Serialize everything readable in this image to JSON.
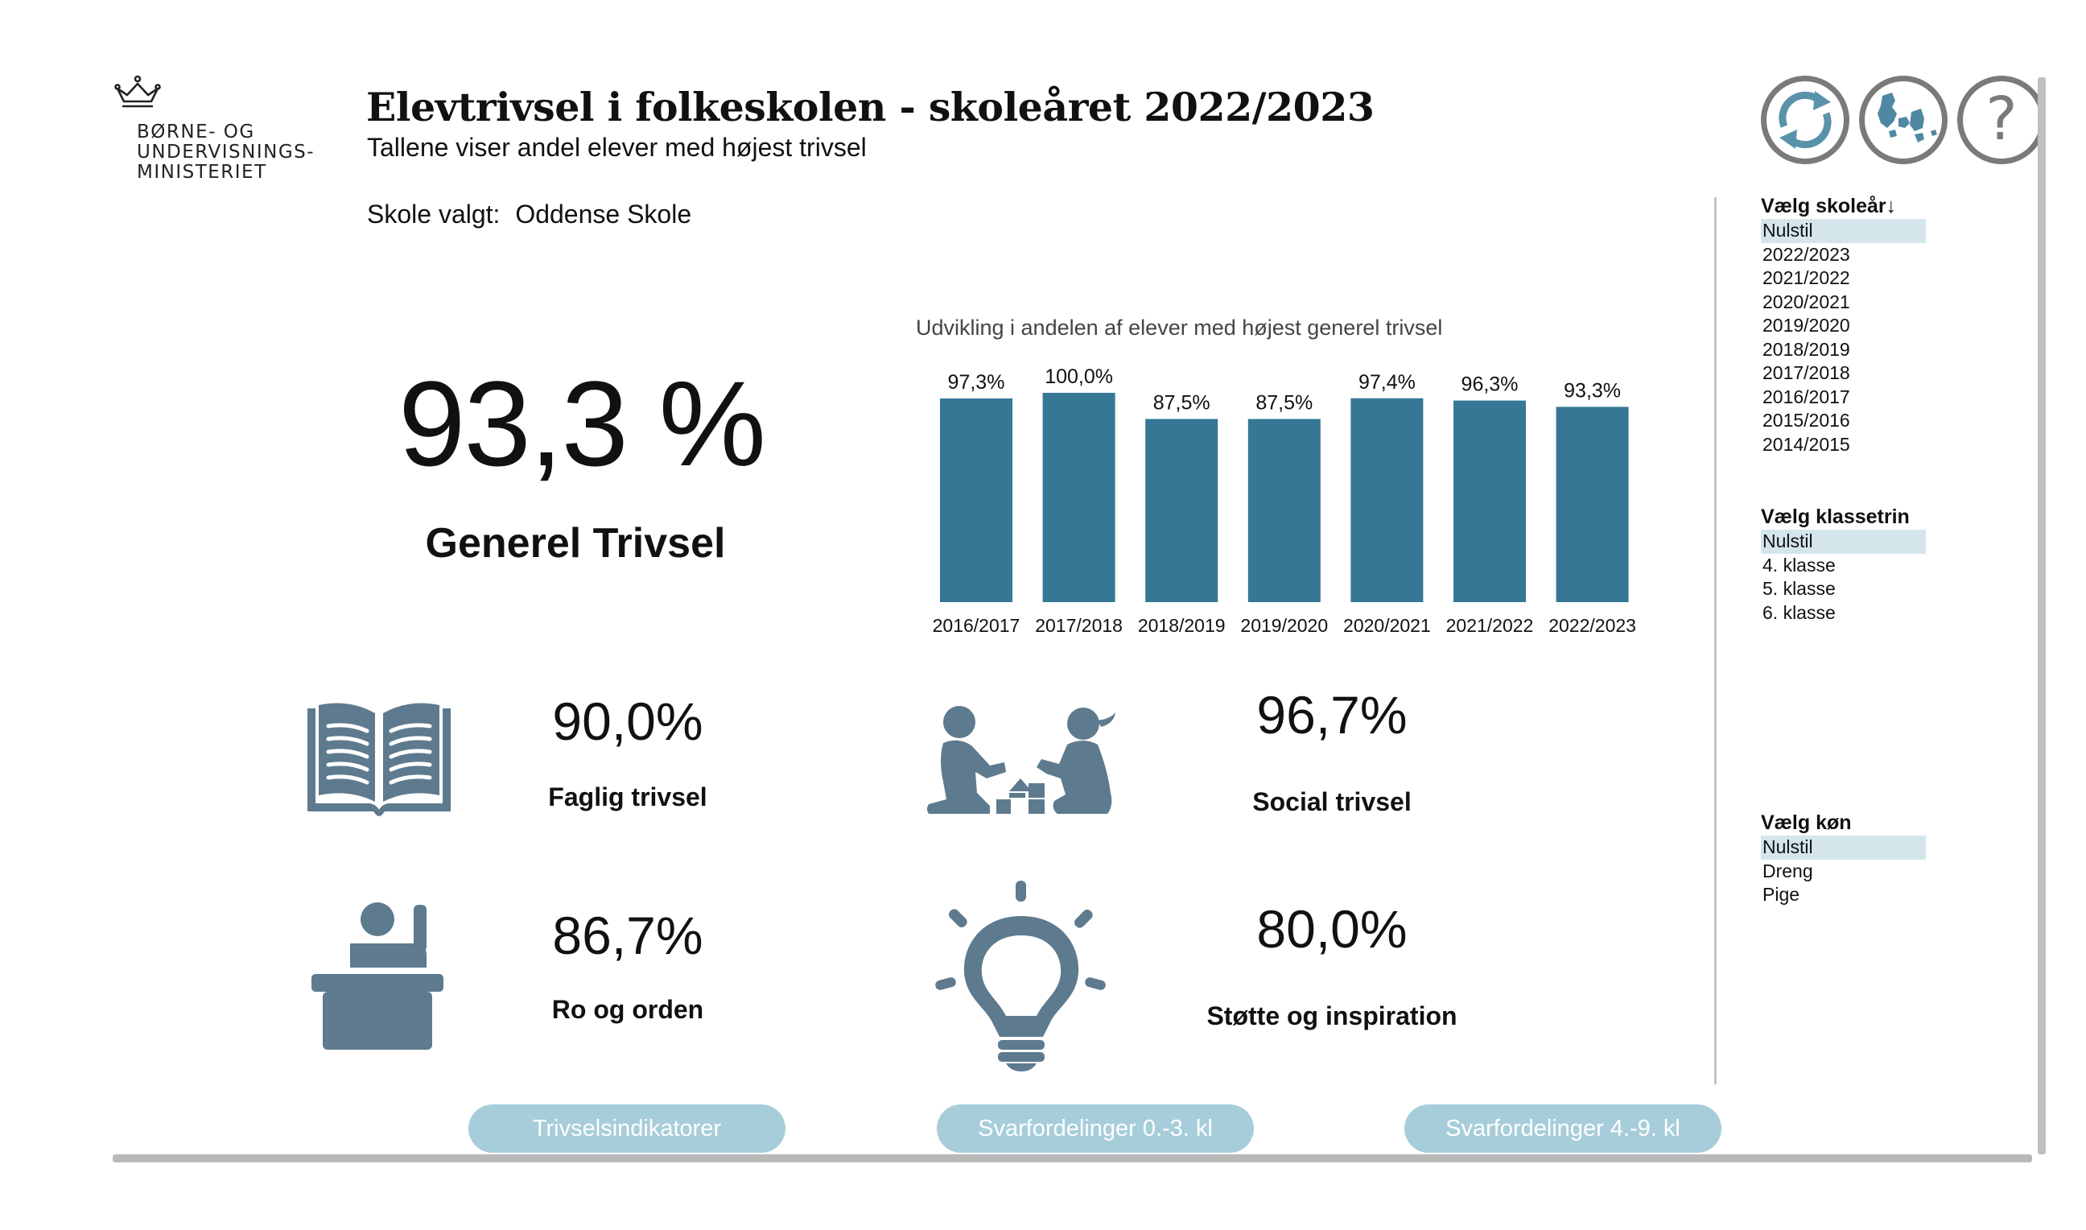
{
  "logo": {
    "lines": [
      "BØRNE- OG",
      "UNDERVISNINGS-",
      "MINISTERIET"
    ]
  },
  "header": {
    "title": "Elevtrivsel i folkeskolen - skoleåret 2022/2023",
    "subtitle": "Tallene viser andel elever med højest trivsel",
    "school_label": "Skole valgt:",
    "school_value": "Oddense Skole"
  },
  "kpi": {
    "value": "93,3 %",
    "label": "Generel Trivsel"
  },
  "chart_data": {
    "type": "bar",
    "title": "Udvikling i andelen af elever med højest generel trivsel",
    "categories": [
      "2016/2017",
      "2017/2018",
      "2018/2019",
      "2019/2020",
      "2020/2021",
      "2021/2022",
      "2022/2023"
    ],
    "values": [
      97.3,
      100.0,
      87.5,
      87.5,
      97.4,
      96.3,
      93.3
    ],
    "data_labels": [
      "97,3%",
      "100,0%",
      "87,5%",
      "87,5%",
      "97,4%",
      "96,3%",
      "93,3%"
    ],
    "ylim": [
      0,
      100
    ],
    "color": "#367795",
    "grid": false
  },
  "indicators": [
    {
      "value": "90,0%",
      "label": "Faglig trivsel",
      "icon": "open-book-icon"
    },
    {
      "value": "96,7%",
      "label": "Social trivsel",
      "icon": "children-playing-icon"
    },
    {
      "value": "86,7%",
      "label": "Ro og orden",
      "icon": "student-raising-hand-icon"
    },
    {
      "value": "80,0%",
      "label": "Støtte og inspiration",
      "icon": "lightbulb-icon"
    }
  ],
  "icon_color": "#5e7a8e",
  "buttons": [
    "Trivselsindikatorer",
    "Svarfordelinger 0.-3. kl",
    "Svarfordelinger 4.-9. kl"
  ],
  "button_color": "#a7cdda",
  "top_icons": [
    "refresh-icon",
    "denmark-map-icon",
    "help-icon"
  ],
  "slicers": {
    "year": {
      "title": "Vælg skoleår↓",
      "items": [
        "Nulstil",
        "2022/2023",
        "2021/2022",
        "2020/2021",
        "2019/2020",
        "2018/2019",
        "2017/2018",
        "2016/2017",
        "2015/2016",
        "2014/2015"
      ]
    },
    "grade": {
      "title": "Vælg klassetrin",
      "items": [
        "Nulstil",
        "4. klasse",
        "5. klasse",
        "6. klasse"
      ]
    },
    "gender": {
      "title": "Vælg køn",
      "items": [
        "Nulstil",
        "Dreng",
        "Pige"
      ]
    }
  }
}
